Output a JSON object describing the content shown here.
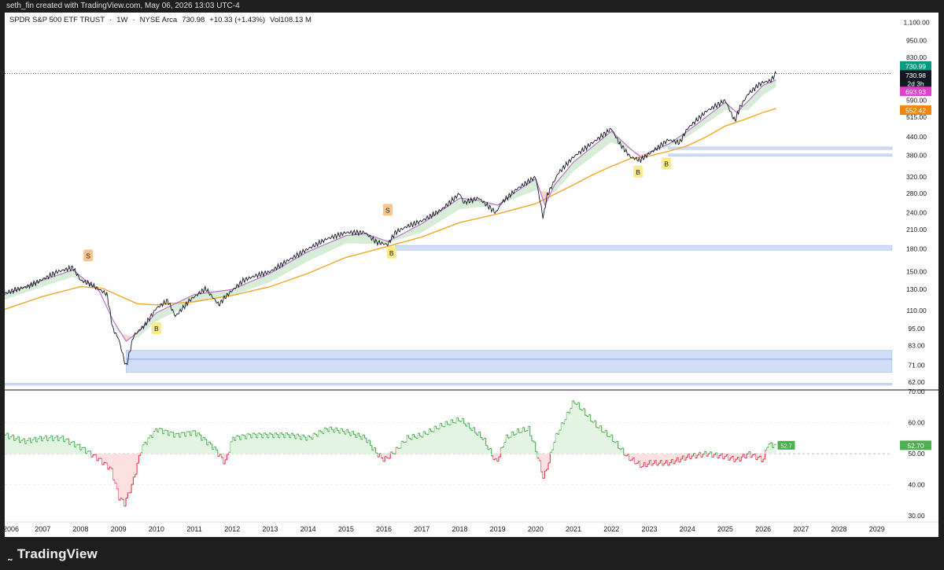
{
  "header": {
    "caption": "seth_fin created with TradingView.com, May 06, 2026 13:03 UTC-4"
  },
  "symbol": {
    "name": "SPDR S&P 500 ETF TRUST",
    "interval": "1W",
    "exchange": "NYSE Arca",
    "price": "730.98",
    "change": "+10.33 (+1.43%)",
    "volume_label": "Vol",
    "volume": "108.13 M"
  },
  "footer": {
    "brand": "TradingView"
  },
  "colors": {
    "price": "#131722",
    "ema_fast": "#b668c9",
    "ma_slow": "#f5a623",
    "band_up": "#c8e6c9",
    "band_down": "#f8c4c4",
    "zone": "#c9d8f5",
    "zone_edge": "#6f8fd8",
    "rsi_line": "#4caf50",
    "rsi_down": "#e53950",
    "rsi_fill_up": "#e3f4e3",
    "rsi_fill_down": "#fde0e0",
    "badge_green": "#089981",
    "badge_black": "#131722",
    "badge_pink": "#e040c8",
    "badge_orange": "#f0850f",
    "marker_s": "#f7c58c",
    "marker_b": "#fbea8a"
  },
  "chart_data": [
    {
      "type": "line",
      "title": "SPDR S&P 500 ETF TRUST · 1W · NYSE Arca",
      "y_scale": "log",
      "ylim": [
        59,
        1130
      ],
      "xlim": [
        2006.0,
        2029.4
      ],
      "y_ticks": [
        "1,100.00",
        "950.00",
        "830.00",
        "730.00",
        "590.00",
        "515.00",
        "440.00",
        "380.00",
        "320.00",
        "280.00",
        "240.00",
        "210.00",
        "180.00",
        "150.00",
        "130.00",
        "110.00",
        "95.00",
        "83.00",
        "71.00",
        "62.00"
      ],
      "x_ticks": [
        "2006",
        "2007",
        "2008",
        "2009",
        "2010",
        "2011",
        "2012",
        "2013",
        "2014",
        "2015",
        "2016",
        "2017",
        "2018",
        "2019",
        "2020",
        "2021",
        "2022",
        "2023",
        "2024",
        "2025",
        "2026",
        "2027",
        "2028",
        "2029"
      ],
      "series": [
        {
          "key": "price",
          "x": [
            2006.0,
            2006.3,
            2006.6,
            2007.0,
            2007.4,
            2007.8,
            2008.0,
            2008.3,
            2008.7,
            2008.85,
            2009.0,
            2009.2,
            2009.4,
            2009.7,
            2010.0,
            2010.3,
            2010.5,
            2010.9,
            2011.3,
            2011.65,
            2011.8,
            2012.0,
            2012.3,
            2012.6,
            2013.0,
            2013.5,
            2014.0,
            2014.5,
            2015.0,
            2015.5,
            2015.8,
            2016.1,
            2016.3,
            2016.6,
            2017.0,
            2017.5,
            2018.0,
            2018.1,
            2018.5,
            2018.95,
            2019.1,
            2019.5,
            2020.0,
            2020.2,
            2020.3,
            2020.6,
            2021.0,
            2021.5,
            2022.0,
            2022.2,
            2022.5,
            2022.75,
            2023.0,
            2023.5,
            2023.8,
            2024.0,
            2024.5,
            2025.0,
            2025.25,
            2025.4,
            2025.6,
            2025.9,
            2026.0,
            2026.2,
            2026.34
          ],
          "values": [
            126,
            130,
            133,
            141,
            150,
            155,
            140,
            135,
            125,
            95,
            88,
            70,
            90,
            98,
            112,
            119,
            105,
            120,
            131,
            115,
            122,
            129,
            140,
            145,
            150,
            165,
            180,
            195,
            205,
            205,
            190,
            186,
            205,
            215,
            225,
            245,
            280,
            260,
            270,
            240,
            260,
            290,
            320,
            230,
            275,
            330,
            375,
            420,
            470,
            420,
            375,
            365,
            385,
            430,
            420,
            470,
            540,
            590,
            500,
            560,
            620,
            670,
            680,
            690,
            730.98
          ]
        },
        {
          "key": "ema_fast",
          "x": [
            2006.0,
            2007.0,
            2007.8,
            2008.5,
            2008.85,
            2009.2,
            2009.5,
            2010.0,
            2011.0,
            2012.0,
            2013.0,
            2014.0,
            2015.0,
            2015.5,
            2016.1,
            2016.5,
            2017.0,
            2018.0,
            2018.5,
            2019.0,
            2019.5,
            2020.0,
            2020.25,
            2020.5,
            2021.0,
            2022.0,
            2022.5,
            2022.8,
            2023.0,
            2023.5,
            2024.0,
            2025.0,
            2025.3,
            2025.6,
            2026.0,
            2026.34
          ],
          "values": [
            125,
            140,
            152,
            128,
            102,
            86,
            92,
            108,
            125,
            130,
            148,
            176,
            200,
            203,
            191,
            203,
            220,
            270,
            265,
            255,
            285,
            315,
            255,
            300,
            360,
            460,
            400,
            372,
            390,
            415,
            460,
            580,
            535,
            585,
            665,
            693.93
          ]
        },
        {
          "key": "band_lower",
          "x": [
            2006.0,
            2007.0,
            2007.8,
            2008.5,
            2009.0,
            2009.5,
            2010.0,
            2011.0,
            2012.0,
            2013.0,
            2014.0,
            2015.0,
            2016.0,
            2017.0,
            2018.0,
            2019.0,
            2020.0,
            2020.5,
            2021.0,
            2022.0,
            2022.8,
            2023.5,
            2024.0,
            2025.0,
            2025.6,
            2026.0,
            2026.34
          ],
          "values": [
            120,
            133,
            144,
            129,
            92,
            88,
            101,
            117,
            124,
            138,
            163,
            188,
            187,
            205,
            247,
            255,
            287,
            282,
            335,
            422,
            382,
            405,
            440,
            545,
            545,
            615,
            655
          ]
        },
        {
          "key": "ma_slow",
          "x": [
            2006.0,
            2007.0,
            2008.0,
            2008.6,
            2009.0,
            2009.5,
            2010.0,
            2011.0,
            2012.0,
            2013.0,
            2014.0,
            2015.0,
            2016.0,
            2017.0,
            2018.0,
            2019.0,
            2020.0,
            2021.0,
            2021.5,
            2022.0,
            2022.5,
            2023.0,
            2023.5,
            2024.0,
            2024.5,
            2025.0,
            2025.5,
            2026.0,
            2026.34
          ],
          "values": [
            111,
            123,
            133,
            131,
            124,
            116,
            115,
            118,
            124,
            133,
            148,
            168,
            182,
            198,
            222,
            238,
            258,
            300,
            325,
            348,
            370,
            378,
            392,
            410,
            440,
            480,
            505,
            535,
            552.42
          ]
        }
      ],
      "annotations": [
        {
          "label": "S",
          "x": 2008.2,
          "y": 170,
          "kind": "sell"
        },
        {
          "label": "B",
          "x": 2010.0,
          "y": 95,
          "kind": "buy"
        },
        {
          "label": "S",
          "x": 2016.1,
          "y": 245,
          "kind": "sell"
        },
        {
          "label": "B",
          "x": 2016.2,
          "y": 174,
          "kind": "buy"
        },
        {
          "label": "B",
          "x": 2022.7,
          "y": 332,
          "kind": "buy"
        },
        {
          "label": "B",
          "x": 2023.45,
          "y": 355,
          "kind": "buy"
        }
      ],
      "zones": [
        {
          "x0": 2009.2,
          "x1": 2029.4,
          "y_top": 80,
          "y_bottom": 67
        },
        {
          "x0": 2016.3,
          "x1": 2029.4,
          "y_top": 185,
          "y_bottom": 178
        },
        {
          "x0": 2023.5,
          "x1": 2029.4,
          "y_top": 406,
          "y_bottom": 398
        },
        {
          "x0": 2023.5,
          "x1": 2029.4,
          "y_top": 384,
          "y_bottom": 377
        },
        {
          "x0": 2006.0,
          "x1": 2029.4,
          "y_top": 61.5,
          "y_bottom": 60.5
        }
      ],
      "price_badges": [
        {
          "label": "730.99",
          "value": 776,
          "color_key": "badge_green"
        },
        {
          "label": "730.98",
          "value": 722,
          "color_key": "badge_black"
        },
        {
          "label": "2d 3h",
          "value": 676,
          "color_key": "badge_black"
        },
        {
          "label": "693.93",
          "value": 633,
          "color_key": "badge_pink"
        },
        {
          "label": "552.42",
          "value": 545,
          "color_key": "badge_orange"
        }
      ],
      "last_price_line": 730.98
    },
    {
      "type": "area",
      "ylim": [
        28,
        70
      ],
      "midline": 50,
      "y_ticks": [
        "70.00",
        "60.00",
        "50.00",
        "40.00",
        "30.00"
      ],
      "last_label": "52.7",
      "last_badge": "52.70",
      "series": [
        {
          "key": "rsi",
          "x": [
            2006.0,
            2006.5,
            2007.0,
            2007.5,
            2008.0,
            2008.5,
            2008.8,
            2009.0,
            2009.15,
            2009.35,
            2009.6,
            2010.0,
            2010.5,
            2011.0,
            2011.5,
            2011.8,
            2012.0,
            2012.5,
            2013.0,
            2013.5,
            2014.0,
            2014.5,
            2015.0,
            2015.5,
            2015.8,
            2016.0,
            2016.3,
            2016.6,
            2017.0,
            2017.5,
            2018.0,
            2018.3,
            2018.6,
            2018.95,
            2019.2,
            2019.5,
            2019.8,
            2020.0,
            2020.2,
            2020.35,
            2020.5,
            2020.8,
            2021.0,
            2021.3,
            2021.6,
            2022.0,
            2022.4,
            2022.8,
            2023.0,
            2023.5,
            2024.0,
            2024.5,
            2025.0,
            2025.3,
            2025.6,
            2026.0,
            2026.1,
            2026.34
          ],
          "values": [
            56,
            54,
            55,
            55,
            52,
            48,
            45,
            36,
            34,
            40,
            52,
            58,
            56,
            57,
            52,
            47,
            55,
            56,
            56,
            56,
            55,
            58,
            57,
            55,
            50,
            48,
            51,
            55,
            56,
            59,
            61,
            58,
            55,
            47,
            55,
            57,
            58,
            51,
            42,
            48,
            55,
            62,
            67,
            63,
            59,
            55,
            49,
            46,
            47,
            47,
            49,
            50,
            49,
            48,
            50,
            48,
            53,
            52.7
          ]
        }
      ]
    }
  ]
}
